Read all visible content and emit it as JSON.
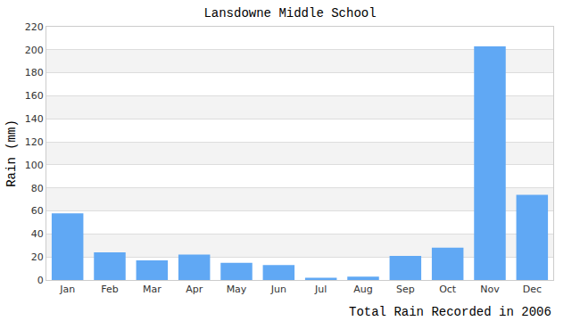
{
  "chart_data": {
    "type": "bar",
    "title": "Lansdowne Middle School",
    "y_label": "Rain (mm)",
    "x_label": "Total Rain Recorded in 2006",
    "categories": [
      "Jan",
      "Feb",
      "Mar",
      "Apr",
      "May",
      "Jun",
      "Jul",
      "Aug",
      "Sep",
      "Oct",
      "Nov",
      "Dec"
    ],
    "values": [
      58,
      24,
      17,
      22,
      15,
      13,
      2,
      3,
      21,
      28,
      203,
      74
    ],
    "color": "#60a8f4",
    "ylim": [
      0,
      220
    ],
    "yticks": [
      0,
      20,
      40,
      60,
      80,
      100,
      120,
      140,
      160,
      180,
      200,
      220
    ],
    "grid": true
  }
}
